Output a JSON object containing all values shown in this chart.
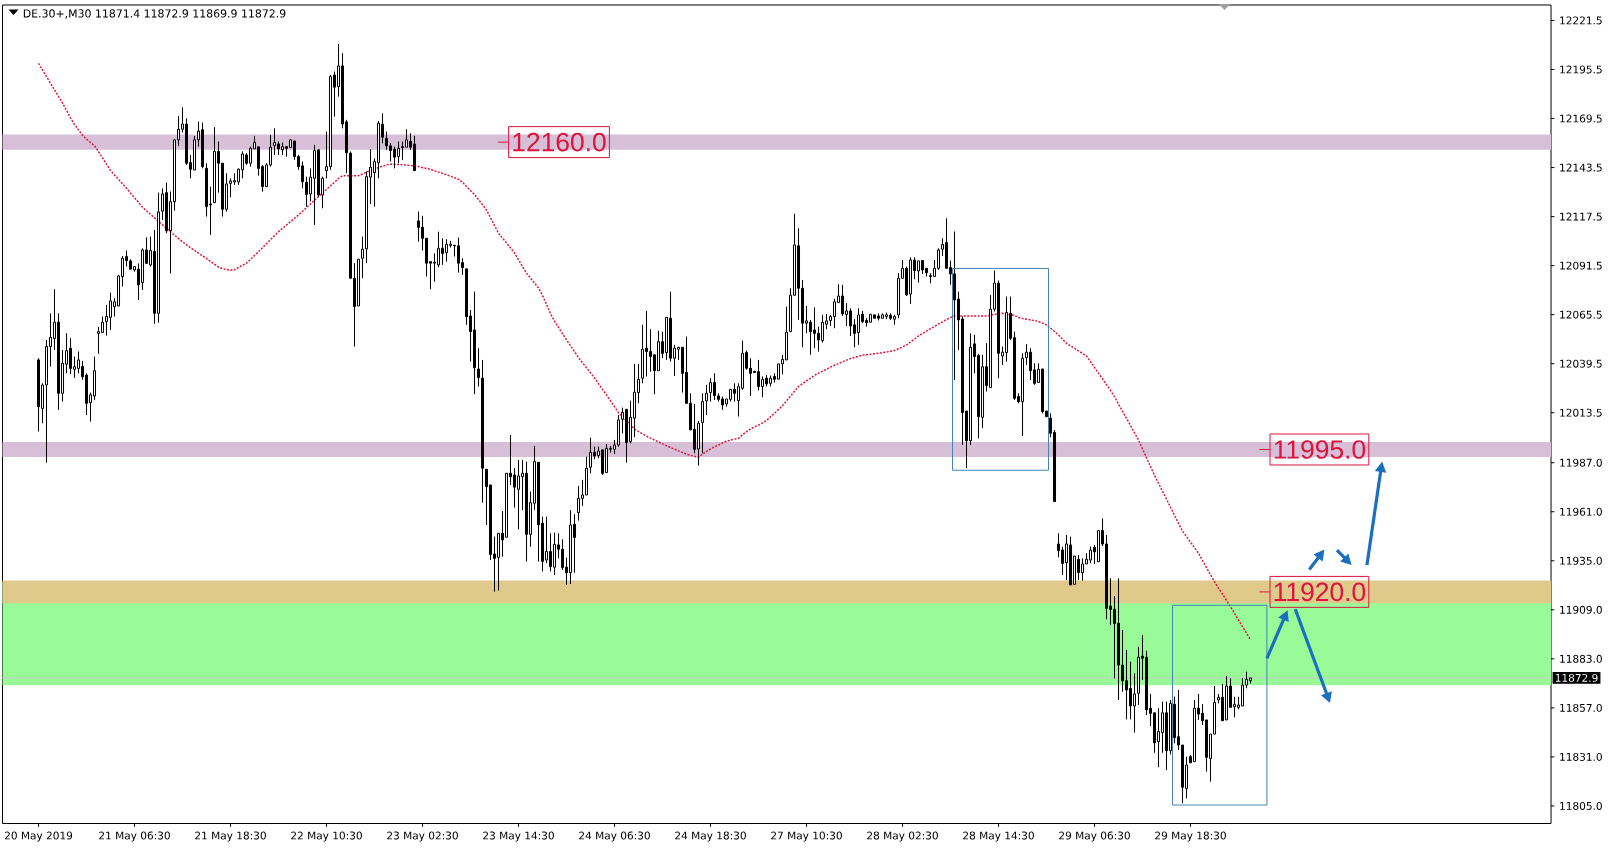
{
  "chart_data": {
    "type": "candlestick",
    "title": "DE.30+,M30 11871.4 11872.9 11869.9 11872.9",
    "color": "#000000",
    "categories": [
      "20 May 2019",
      null,
      null,
      null,
      null,
      null,
      null,
      null,
      null,
      null,
      null,
      null,
      null,
      null,
      null,
      null,
      null,
      null,
      null,
      null,
      null,
      null,
      null,
      null,
      "21 May 06:30",
      null,
      null,
      null,
      null,
      null,
      null,
      null,
      null,
      null,
      null,
      null,
      null,
      null,
      null,
      null,
      null,
      null,
      null,
      null,
      null,
      null,
      null,
      null,
      "21 May 18:30",
      null,
      null,
      null,
      null,
      null,
      null,
      null,
      null,
      null,
      null,
      null,
      null,
      null,
      null,
      null,
      null,
      null,
      null,
      null,
      null,
      null,
      null,
      null,
      "22 May 10:30",
      null,
      null,
      null,
      null,
      null,
      null,
      null,
      null,
      null,
      null,
      null,
      null,
      null,
      null,
      null,
      null,
      null,
      null,
      null,
      null,
      null,
      null,
      null,
      "23 May 02:30",
      null,
      null,
      null,
      null,
      null,
      null,
      null,
      null,
      null,
      null,
      null,
      null,
      null,
      null,
      null,
      null,
      null,
      null,
      null,
      null,
      null,
      null,
      null,
      "23 May 14:30",
      null,
      null,
      null,
      null,
      null,
      null,
      null,
      null,
      null,
      null,
      null,
      null,
      null,
      null,
      null,
      null,
      null,
      null,
      null,
      null,
      null,
      null,
      null,
      "24 May 06:30",
      null,
      null,
      null,
      null,
      null,
      null,
      null,
      null,
      null,
      null,
      null,
      null,
      null,
      null,
      null,
      null,
      null,
      null,
      null,
      null,
      null,
      null,
      null,
      "24 May 18:30",
      null,
      null,
      null,
      null,
      null,
      null,
      null,
      null,
      null,
      null,
      null,
      null,
      null,
      null,
      null,
      null,
      null,
      null,
      null,
      null,
      null,
      null,
      null,
      "27 May 10:30",
      null,
      null,
      null,
      null,
      null,
      null,
      null,
      null,
      null,
      null,
      null,
      null,
      null,
      null,
      null,
      null,
      null,
      null,
      null,
      null,
      null,
      null,
      null,
      "28 May 02:30",
      null,
      null,
      null,
      null,
      null,
      null,
      null,
      null,
      null,
      null,
      null,
      null,
      null,
      null,
      null,
      null,
      null,
      null,
      null,
      null,
      null,
      null,
      null,
      "28 May 14:30",
      null,
      null,
      null,
      null,
      null,
      null,
      null,
      null,
      null,
      null,
      null,
      null,
      null,
      null,
      null,
      null,
      null,
      null,
      null,
      null,
      null,
      null,
      null,
      "29 May 06:30",
      null,
      null,
      null,
      null,
      null,
      null,
      null,
      null,
      null,
      null,
      null,
      null,
      null,
      null,
      null,
      null,
      null,
      null,
      null,
      null,
      null,
      null,
      null,
      "29 May 18:30",
      null,
      null,
      null,
      null,
      null,
      null,
      null,
      null,
      null,
      null,
      null,
      null,
      null,
      null,
      null
    ],
    "ohlc": [
      [
        12041.5,
        12042.4,
        12003.5,
        12016.7
      ],
      [
        12015.8,
        12029.1,
        12007.9,
        12028.2
      ],
      [
        12028.2,
        12052.1,
        11987.0,
        12048.6
      ],
      [
        12048.6,
        12066.2,
        12038.0,
        12053.5
      ],
      [
        12052.9,
        12079.0,
        12046.8,
        12061.5
      ],
      [
        12061.5,
        12066.2,
        12015.0,
        12023.8
      ],
      [
        12023.8,
        12046.8,
        12019.4,
        12039.7
      ],
      [
        12039.2,
        12055.6,
        12034.4,
        12046.4
      ],
      [
        12047.7,
        12053.0,
        12034.0,
        12037.0
      ],
      [
        12036.5,
        12043.3,
        12032.0,
        12037.9
      ],
      [
        12037.0,
        12046.0,
        12034.4,
        12041.5
      ],
      [
        12038.0,
        12041.0,
        12031.0,
        12032.6
      ],
      [
        12033.5,
        12034.4,
        12012.3,
        12018.5
      ],
      [
        12018.8,
        12024.2,
        12008.8,
        12023.0
      ],
      [
        12022.4,
        12043.3,
        12020.3,
        12035.8
      ],
      [
        12055.6,
        12059.0,
        12044.7,
        12056.5
      ],
      [
        12056.0,
        12064.5,
        12056.0,
        12061.5
      ],
      [
        12061.8,
        12070.7,
        12054.4,
        12064.5
      ],
      [
        12064.1,
        12077.2,
        12057.4,
        12072.8
      ],
      [
        12069.8,
        12074.2,
        12064.5,
        12072.3
      ],
      [
        12070.1,
        12086.6,
        12070.1,
        12086.0
      ],
      [
        12085.7,
        12096.6,
        12080.4,
        12095.4
      ],
      [
        12096.3,
        12099.5,
        12091.0,
        12094.2
      ],
      [
        12094.0,
        12094.9,
        12089.6,
        12089.6
      ],
      [
        12089.2,
        12091.0,
        12088.3,
        12091.0
      ],
      [
        12089.6,
        12092.7,
        12073.3,
        12081.3
      ],
      [
        12082.5,
        12100.7,
        12078.6,
        12099.8
      ],
      [
        12099.8,
        12106.5,
        12092.7,
        12092.7
      ],
      [
        12091.9,
        12106.9,
        12091.0,
        12099.5
      ],
      [
        12099.0,
        12110.4,
        12060.6,
        12066.2
      ],
      [
        12066.2,
        12130.2,
        12061.3,
        12120.0
      ],
      [
        12120.4,
        12132.5,
        12115.7,
        12129.5
      ],
      [
        12130.2,
        12135.5,
        12108.7,
        12110.0
      ],
      [
        12110.0,
        12130.8,
        12087.4,
        12125.4
      ],
      [
        12125.4,
        12158.2,
        12120.7,
        12158.2
      ],
      [
        12158.2,
        12170.9,
        12155.0,
        12163.8
      ],
      [
        12163.8,
        12175.5,
        12162.1,
        12166.6
      ],
      [
        12166.6,
        12169.6,
        12144.9,
        12145.8
      ],
      [
        12146.1,
        12150.2,
        12137.8,
        12142.6
      ],
      [
        12142.2,
        12160.3,
        12142.2,
        12158.2
      ],
      [
        12158.2,
        12167.9,
        12154.6,
        12162.9
      ],
      [
        12163.5,
        12167.4,
        12143.1,
        12144.0
      ],
      [
        12143.1,
        12145.8,
        12117.5,
        12122.8
      ],
      [
        12124.2,
        12133.4,
        12107.8,
        12123.7
      ],
      [
        12124.9,
        12164.9,
        12124.9,
        12152.0
      ],
      [
        12152.0,
        12157.3,
        12130.2,
        12145.8
      ],
      [
        12145.8,
        12145.8,
        12117.5,
        12121.4
      ],
      [
        12121.4,
        12140.5,
        12120.1,
        12134.8
      ],
      [
        12135.1,
        12137.8,
        12127.7,
        12136.4
      ],
      [
        12135.9,
        12140.5,
        12134.3,
        12136.6
      ],
      [
        12135.9,
        12143.1,
        12134.3,
        12142.6
      ],
      [
        12142.3,
        12152.0,
        12137.8,
        12150.7
      ],
      [
        12150.2,
        12151.1,
        12144.9,
        12145.8
      ],
      [
        12145.8,
        12154.6,
        12144.0,
        12153.7
      ],
      [
        12153.4,
        12160.3,
        12153.4,
        12156.9
      ],
      [
        12154.5,
        12154.5,
        12139.2,
        12143.1
      ],
      [
        12144.0,
        12144.9,
        12130.7,
        12133.4
      ],
      [
        12133.4,
        12145.8,
        12133.4,
        12144.9
      ],
      [
        12144.9,
        12160.8,
        12144.0,
        12154.3
      ],
      [
        12155.2,
        12164.3,
        12150.2,
        12156.8
      ],
      [
        12156.0,
        12157.3,
        12150.2,
        12153.4
      ],
      [
        12152.9,
        12156.8,
        12150.2,
        12154.6
      ],
      [
        12154.6,
        12154.6,
        12149.3,
        12153.7
      ],
      [
        12154.1,
        12158.2,
        12154.1,
        12158.2
      ],
      [
        12157.6,
        12157.6,
        12147.6,
        12149.3
      ],
      [
        12149.3,
        12150.2,
        12142.3,
        12144.0
      ],
      [
        12144.4,
        12146.7,
        12132.5,
        12136.0
      ],
      [
        12135.7,
        12138.7,
        12122.8,
        12129.3
      ],
      [
        12129.5,
        12143.1,
        12125.5,
        12138.4
      ],
      [
        12137.8,
        12155.5,
        12113.1,
        12152.5
      ],
      [
        12152.9,
        12152.9,
        12128.1,
        12129.0
      ],
      [
        12129.0,
        12138.7,
        12121.9,
        12137.8
      ],
      [
        12141.9,
        12162.6,
        12137.8,
        12144.0
      ],
      [
        12144.0,
        12192.6,
        12142.3,
        12191.7
      ],
      [
        12192.6,
        12194.4,
        12170.5,
        12186.1
      ],
      [
        12186.4,
        12209.1,
        12181.1,
        12197.4
      ],
      [
        12197.4,
        12204.1,
        12164.3,
        12166.6
      ],
      [
        12167.7,
        12168.8,
        12140.5,
        12151.4
      ],
      [
        12151.1,
        12152.0,
        12084.8,
        12084.8
      ],
      [
        12084.8,
        12092.8,
        12048.6,
        12069.8
      ],
      [
        12070.1,
        12094.9,
        12070.1,
        12094.9
      ],
      [
        12095.4,
        12106.9,
        12084.8,
        12100.2
      ],
      [
        12100.4,
        12141.4,
        12092.8,
        12138.7
      ],
      [
        12138.4,
        12153.2,
        12124.2,
        12143.7
      ],
      [
        12140.8,
        12148.4,
        12122.8,
        12146.7
      ],
      [
        12146.1,
        12168.2,
        12137.8,
        12167.0
      ],
      [
        12166.5,
        12172.3,
        12156.4,
        12159.6
      ],
      [
        12159.0,
        12162.6,
        12152.9,
        12155.0
      ],
      [
        12155.0,
        12156.4,
        12146.7,
        12152.5
      ],
      [
        12153.2,
        12154.6,
        12143.1,
        12149.0
      ],
      [
        12149.3,
        12157.3,
        12145.8,
        12153.7
      ],
      [
        12154.6,
        12157.3,
        12147.6,
        12154.1
      ],
      [
        12154.3,
        12163.8,
        12154.3,
        12158.2
      ],
      [
        12157.3,
        12161.7,
        12152.9,
        12154.3
      ],
      [
        12155.9,
        12160.3,
        12141.9,
        12141.9
      ],
      [
        12115.2,
        12120.2,
        12104.2,
        12111.8
      ],
      [
        12111.8,
        12117.9,
        12099.5,
        12106.0
      ],
      [
        12106.0,
        12106.0,
        12085.7,
        12092.8
      ],
      [
        12093.6,
        12093.6,
        12079.0,
        12092.8
      ],
      [
        12093.3,
        12098.0,
        12083.0,
        12092.8
      ],
      [
        12091.9,
        12109.5,
        12090.6,
        12100.7
      ],
      [
        12100.7,
        12106.0,
        12091.9,
        12098.0
      ],
      [
        12098.4,
        12105.5,
        12093.6,
        12102.8
      ],
      [
        12102.2,
        12104.6,
        12101.1,
        12102.9
      ],
      [
        12102.3,
        12102.3,
        12096.3,
        12102.0
      ],
      [
        12102.0,
        12106.4,
        12087.8,
        12092.8
      ],
      [
        12093.1,
        12095.4,
        12086.6,
        12090.5
      ],
      [
        12089.8,
        12089.8,
        12060.1,
        12064.5
      ],
      [
        12064.8,
        12068.0,
        12040.6,
        12056.5
      ],
      [
        12057.4,
        12077.7,
        12023.3,
        12037.4
      ],
      [
        12036.7,
        12047.7,
        12027.4,
        12032.1
      ],
      [
        12031.8,
        12041.5,
        11965.8,
        11984.1
      ],
      [
        11983.5,
        11983.5,
        11954.0,
        11974.3
      ],
      [
        11975.2,
        11975.2,
        11935.4,
        11938.4
      ],
      [
        11938.6,
        11947.8,
        11918.6,
        11936.3
      ],
      [
        11936.8,
        11949.6,
        11919.2,
        11949.6
      ],
      [
        11949.6,
        11961.4,
        11937.2,
        11946.1
      ],
      [
        11947.5,
        11981.4,
        11947.5,
        11981.4
      ],
      [
        11981.4,
        12001.7,
        11975.2,
        11979.6
      ],
      [
        11980.5,
        11984.1,
        11963.2,
        11974.0
      ],
      [
        11972.9,
        11988.5,
        11951.7,
        11980.0
      ],
      [
        11979.6,
        11988.5,
        11961.9,
        11981.4
      ],
      [
        11981.4,
        11987.6,
        11934.6,
        11949.0
      ],
      [
        11949.0,
        11971.7,
        11942.5,
        11965.8
      ],
      [
        11965.5,
        11995.9,
        11962.0,
        11987.6
      ],
      [
        11987.2,
        11987.2,
        11934.6,
        11954.0
      ],
      [
        11954.9,
        11958.4,
        11929.3,
        11934.6
      ],
      [
        11935.4,
        11958.4,
        11933.7,
        11939.9
      ],
      [
        11939.9,
        11949.6,
        11929.3,
        11931.9
      ],
      [
        11931.6,
        11949.9,
        11927.5,
        11943.7
      ],
      [
        11943.4,
        11949.6,
        11936.3,
        11941.1
      ],
      [
        11941.1,
        11946.4,
        11930.1,
        11931.4
      ],
      [
        11931.6,
        11936.7,
        11922.2,
        11928.7
      ],
      [
        11928.7,
        11961.9,
        11922.7,
        11954.0
      ],
      [
        11954.4,
        11959.7,
        11928.7,
        11947.3
      ],
      [
        11960.5,
        11974.7,
        11956.3,
        11968.1
      ],
      [
        11968.1,
        11977.9,
        11964.1,
        11969.9
      ],
      [
        11969.9,
        11990.2,
        11969.9,
        11984.1
      ],
      [
        11984.6,
        12000.3,
        11981.4,
        11992.5
      ],
      [
        11992.5,
        11995.5,
        11988.8,
        11990.6
      ],
      [
        11990.8,
        11995.5,
        11989.4,
        11993.2
      ],
      [
        11993.8,
        11993.8,
        11980.5,
        11981.4
      ],
      [
        11981.8,
        11996.9,
        11981.8,
        11994.6
      ],
      [
        11994.1,
        11995.9,
        11992.4,
        11994.6
      ],
      [
        11994.1,
        11999.1,
        11991.6,
        11996.4
      ],
      [
        11996.4,
        12012.3,
        11995.5,
        12009.7
      ],
      [
        12010.0,
        12016.2,
        12002.6,
        12013.7
      ],
      [
        12015.3,
        12015.3,
        11987.0,
        11997.7
      ],
      [
        11998.2,
        12019.9,
        11997.3,
        12011.1
      ],
      [
        12010.6,
        12039.4,
        12000.5,
        12024.4
      ],
      [
        12024.2,
        12039.4,
        12018.5,
        12031.2
      ],
      [
        12031.8,
        12060.1,
        12029.1,
        12047.2
      ],
      [
        12047.7,
        12067.5,
        12032.7,
        12045.9
      ],
      [
        12045.9,
        12057.8,
        12035.3,
        12043.3
      ],
      [
        12044.2,
        12044.2,
        12023.3,
        12035.8
      ],
      [
        12035.8,
        12056.9,
        12035.8,
        12051.2
      ],
      [
        12051.2,
        12056.5,
        12042.4,
        12045.0
      ],
      [
        12045.4,
        12064.1,
        12041.5,
        12064.1
      ],
      [
        12063.6,
        12077.7,
        12040.6,
        12042.4
      ],
      [
        12042.4,
        12049.5,
        12033.0,
        12047.7
      ],
      [
        12047.2,
        12048.2,
        12041.5,
        12048.2
      ],
      [
        12048.2,
        12048.2,
        12024.2,
        12034.4
      ],
      [
        12034.9,
        12053.9,
        12018.5,
        12018.5
      ],
      [
        12018.5,
        12023.8,
        12004.4,
        12004.4
      ],
      [
        12004.7,
        12018.2,
        11992.0,
        11994.1
      ],
      [
        11994.3,
        12009.2,
        11985.5,
        12007.9
      ],
      [
        12008.3,
        12023.8,
        11992.0,
        12019.4
      ],
      [
        12019.8,
        12028.3,
        12012.3,
        12023.8
      ],
      [
        12024.2,
        12031.8,
        12019.4,
        12029.5
      ],
      [
        12029.5,
        12034.4,
        12020.3,
        12022.6
      ],
      [
        12022.4,
        12023.8,
        12019.4,
        12020.6
      ],
      [
        12020.8,
        12022.1,
        12015.0,
        12017.6
      ],
      [
        12018.2,
        12020.8,
        12016.7,
        12020.8
      ],
      [
        12020.6,
        12025.9,
        12019.4,
        12025.9
      ],
      [
        12025.9,
        12029.1,
        12019.4,
        12023.8
      ],
      [
        12019.9,
        12029.1,
        12011.5,
        12027.3
      ],
      [
        12026.5,
        12051.8,
        12025.6,
        12045.0
      ],
      [
        12045.4,
        12046.5,
        12036.2,
        12037.1
      ],
      [
        12037.1,
        12042.4,
        12022.4,
        12034.4
      ],
      [
        12035.5,
        12035.5,
        12034.8,
        12034.8
      ],
      [
        12035.3,
        12041.5,
        12025.3,
        12027.4
      ],
      [
        12027.4,
        12032.7,
        12021.7,
        12031.2
      ],
      [
        12031.8,
        12033.5,
        12027.4,
        12028.8
      ],
      [
        12029.1,
        12033.2,
        12027.4,
        12031.8
      ],
      [
        12032.7,
        12034.4,
        12029.5,
        12031.2
      ],
      [
        12031.3,
        12039.4,
        12031.3,
        12039.4
      ],
      [
        12039.4,
        12044.2,
        12033.9,
        12041.8
      ],
      [
        12041.5,
        12069.8,
        12041.5,
        12056.2
      ],
      [
        12056.5,
        12079.5,
        12056.5,
        12075.8
      ],
      [
        12075.8,
        12119.0,
        12075.8,
        12102.5
      ],
      [
        12102.0,
        12111.3,
        12062.7,
        12079.5
      ],
      [
        12079.5,
        12083.9,
        12048.2,
        12061.0
      ],
      [
        12061.0,
        12070.1,
        12055.6,
        12062.2
      ],
      [
        12061.5,
        12062.7,
        12044.2,
        12056.5
      ],
      [
        12057.4,
        12069.4,
        12047.7,
        12055.6
      ],
      [
        12055.6,
        12059.2,
        12045.9,
        12052.1
      ],
      [
        12051.8,
        12065.4,
        12050.7,
        12061.5
      ],
      [
        12060.4,
        12065.9,
        12057.8,
        12062.2
      ],
      [
        12062.4,
        12065.4,
        12059.5,
        12064.5
      ],
      [
        12064.5,
        12073.9,
        12058.3,
        12072.3
      ],
      [
        12071.9,
        12081.6,
        12071.9,
        12075.4
      ],
      [
        12075.4,
        12081.3,
        12064.8,
        12065.9
      ],
      [
        12065.6,
        12071.6,
        12059.5,
        12067.5
      ],
      [
        12067.5,
        12068.9,
        12054.2,
        12059.5
      ],
      [
        12060.1,
        12063.1,
        12048.2,
        12055.6
      ],
      [
        12056.0,
        12068.9,
        12049.5,
        12065.4
      ],
      [
        12065.7,
        12067.5,
        12060.9,
        12061.8
      ],
      [
        12062.4,
        12063.6,
        12059.2,
        12061.3
      ],
      [
        12061.5,
        12065.7,
        12061.5,
        12065.7
      ],
      [
        12065.4,
        12065.4,
        12063.6,
        12063.6
      ],
      [
        12064.8,
        12066.2,
        12062.4,
        12063.6
      ],
      [
        12063.6,
        12066.2,
        12063.6,
        12065.4
      ],
      [
        12064.5,
        12066.6,
        12063.1,
        12065.4
      ],
      [
        12065.2,
        12066.2,
        12062.7,
        12063.6
      ],
      [
        12063.1,
        12065.4,
        12060.1,
        12064.5
      ],
      [
        12065.4,
        12087.5,
        12063.6,
        12084.8
      ],
      [
        12084.8,
        12094.5,
        12084.8,
        12090.1
      ],
      [
        12090.1,
        12091.0,
        12075.4,
        12076.0
      ],
      [
        12076.4,
        12095.9,
        12071.2,
        12094.5
      ],
      [
        12094.5,
        12095.9,
        12084.3,
        12088.9
      ],
      [
        12088.7,
        12094.0,
        12082.5,
        12094.0
      ],
      [
        12094.2,
        12094.2,
        12087.1,
        12089.2
      ],
      [
        12090.1,
        12090.1,
        12085.7,
        12087.8
      ],
      [
        12086.2,
        12087.5,
        12082.2,
        12085.7
      ],
      [
        12085.7,
        12094.5,
        12085.7,
        12090.1
      ],
      [
        12090.1,
        12100.7,
        12089.2,
        12099.8
      ],
      [
        12100.2,
        12106.0,
        12096.6,
        12102.8
      ],
      [
        12103.7,
        12116.6,
        12090.1,
        12090.1
      ],
      [
        12090.5,
        12094.2,
        12081.3,
        12087.1
      ],
      [
        12087.1,
        12109.6,
        12030.9,
        12073.3
      ],
      [
        12073.7,
        12077.7,
        12046.8,
        12062.7
      ],
      [
        12063.2,
        12064.5,
        11996.4,
        12013.6
      ],
      [
        12014.4,
        12014.4,
        11984.1,
        11998.7
      ],
      [
        11998.7,
        12055.6,
        11996.4,
        12048.2
      ],
      [
        12050.0,
        12054.8,
        12034.4,
        12043.3
      ],
      [
        12043.8,
        12044.7,
        11999.9,
        12011.4
      ],
      [
        12011.1,
        12044.2,
        12005.3,
        12037.9
      ],
      [
        12037.9,
        12050.4,
        12024.7,
        12027.9
      ],
      [
        12026.8,
        12076.0,
        12026.8,
        12068.4
      ],
      [
        12068.4,
        12088.9,
        12067.1,
        12082.2
      ],
      [
        12082.2,
        12083.6,
        12031.8,
        12045.0
      ],
      [
        12043.6,
        12048.6,
        12038.8,
        12045.6
      ],
      [
        12045.4,
        12075.1,
        12040.6,
        12066.6
      ],
      [
        12066.2,
        12075.1,
        12052.1,
        12053.0
      ],
      [
        12053.3,
        12056.5,
        12020.3,
        12021.2
      ],
      [
        12022.1,
        12023.8,
        12018.5,
        12019.4
      ],
      [
        12019.4,
        12045.0,
        12001.2,
        12042.4
      ],
      [
        12042.7,
        12049.9,
        12038.8,
        12045.6
      ],
      [
        12045.6,
        12047.7,
        12030.9,
        12035.8
      ],
      [
        12036.2,
        12039.7,
        12028.3,
        12029.1
      ],
      [
        12029.5,
        12039.7,
        12029.5,
        12036.5
      ],
      [
        12036.7,
        12036.7,
        12013.2,
        12014.1
      ],
      [
        12014.4,
        12014.4,
        12011.4,
        12011.4
      ],
      [
        12010.6,
        12013.2,
        12000.5,
        12002.6
      ],
      [
        12003.1,
        12004.4,
        11966.4,
        11966.4
      ],
      [
        11943.9,
        11949.6,
        11936.8,
        11940.4
      ],
      [
        11940.7,
        11942.5,
        11927.5,
        11933.6
      ],
      [
        11934.0,
        11948.7,
        11924.8,
        11943.9
      ],
      [
        11943.4,
        11947.8,
        11922.2,
        11922.2
      ],
      [
        11922.5,
        11937.5,
        11922.5,
        11937.5
      ],
      [
        11935.8,
        11938.1,
        11924.8,
        11928.7
      ],
      [
        11928.7,
        11936.3,
        11924.5,
        11933.3
      ],
      [
        11933.3,
        11939.0,
        11933.3,
        11935.8
      ],
      [
        11935.4,
        11942.5,
        11933.7,
        11940.7
      ],
      [
        11942.1,
        11943.4,
        11933.3,
        11939.8
      ],
      [
        11934.5,
        11951.0,
        11934.5,
        11951.0
      ],
      [
        11951.0,
        11957.5,
        11942.8,
        11943.9
      ],
      [
        11943.9,
        11948.7,
        11904.0,
        11909.8
      ],
      [
        11911.0,
        11925.7,
        11900.9,
        11909.2
      ],
      [
        11909.3,
        11916.3,
        11872.7,
        11901.8
      ],
      [
        11901.8,
        11925.7,
        11861.2,
        11879.7
      ],
      [
        11879.7,
        11898.3,
        11865.6,
        11871.4
      ],
      [
        11871.4,
        11887.7,
        11850.9,
        11866.5
      ],
      [
        11867.3,
        11881.5,
        11850.9,
        11858.0
      ],
      [
        11858.0,
        11875.3,
        11843.9,
        11864.4
      ],
      [
        11864.7,
        11889.4,
        11858.5,
        11883.8
      ],
      [
        11884.5,
        11895.6,
        11871.8,
        11883.3
      ],
      [
        11883.8,
        11887.3,
        11853.2,
        11855.9
      ],
      [
        11856.8,
        11864.4,
        11847.4,
        11854.1
      ],
      [
        11854.4,
        11854.4,
        11833.2,
        11838.5
      ],
      [
        11839.1,
        11856.8,
        11825.5,
        11844.4
      ],
      [
        11843.9,
        11860.3,
        11833.2,
        11854.4
      ],
      [
        11854.4,
        11860.3,
        11824.0,
        11834.3
      ],
      [
        11834.3,
        11861.2,
        11832.3,
        11859.4
      ],
      [
        11858.9,
        11863.0,
        11838.2,
        11841.2
      ],
      [
        11841.7,
        11866.5,
        11834.6,
        11837.3
      ],
      [
        11837.3,
        11837.3,
        11806.4,
        11814.9
      ],
      [
        11814.3,
        11831.1,
        11809.0,
        11826.7
      ],
      [
        11831.1,
        11832.0,
        11827.9,
        11827.9
      ],
      [
        11828.5,
        11861.2,
        11828.5,
        11856.8
      ],
      [
        11856.8,
        11864.4,
        11850.6,
        11853.7
      ],
      [
        11854.1,
        11859.0,
        11847.9,
        11850.2
      ],
      [
        11850.6,
        11850.6,
        11823.2,
        11830.8
      ],
      [
        11830.2,
        11843.1,
        11817.9,
        11843.1
      ],
      [
        11843.1,
        11868.6,
        11843.1,
        11859.9
      ],
      [
        11861.2,
        11864.4,
        11859.4,
        11862.6
      ],
      [
        11862.6,
        11869.7,
        11850.2,
        11850.2
      ],
      [
        11850.6,
        11873.9,
        11850.6,
        11868.6
      ],
      [
        11868.6,
        11872.7,
        11857.3,
        11857.3
      ],
      [
        11857.6,
        11862.9,
        11852.0,
        11858.9
      ],
      [
        11857.3,
        11862.9,
        11856.2,
        11858.5
      ],
      [
        11858.0,
        11872.7,
        11858.0,
        11869.1
      ],
      [
        11869.1,
        11876.2,
        11867.4,
        11872.1
      ],
      [
        11871.4,
        11872.9,
        11869.9,
        11872.9
      ]
    ],
    "series": [
      {
        "type": "line",
        "color": "#dc143c",
        "line_style": "dotted",
        "values": [
          12198.8,
          12195.2,
          12191.7,
          12188.2,
          12184.7,
          12181.3,
          12177.7,
          12173.8,
          12169.9,
          12166.3,
          12163.5,
          12160.6,
          12158.6,
          12156.8,
          12155,
          12151.9,
          12148.6,
          12145.2,
          12142,
          12139.6,
          12137.2,
          12134.9,
          12132.5,
          12130,
          12127.5,
          12125,
          12122.5,
          12120.5,
          12118.7,
          12116.8,
          null,
          12113.1,
          null,
          null,
          12107.6,
          12105.9,
          12104.2,
          12102.5,
          12101,
          12099.6,
          12098.1,
          12096.7,
          12095.2,
          12093.7,
          12092.2,
          12090.7,
          12089.9,
          12089.4,
          12089,
          12089.3,
          12090.6,
          12091.7,
          12092.8,
          12094.8,
          12096.9,
          12098.9,
          12101,
          12103.1,
          12105.3,
          12107.4,
          12109.5,
          12111.3,
          12113.1,
          12114.8,
          12116.6,
          12118.4,
          12120.3,
          12122.3,
          12124.2,
          12126.2,
          null,
          null,
          12131.9,
          12133.8,
          12135.7,
          12137.7,
          12139.2,
          12139.2,
          null,
          12139.2,
          12139.2,
          12140.1,
          12141.1,
          null,
          null,
          12143.5,
          12144.2,
          12144.9,
          12145.3,
          12145.2,
          12145.1,
          12145,
          12144.8,
          12144.6,
          12144.3,
          12144,
          12143.5,
          12143,
          12142.5,
          12141.8,
          12141.1,
          12140.4,
          12139.7,
          12138.9,
          12138.1,
          12137.3,
          12135.7,
          12133.5,
          12131.3,
          12129.2,
          12126.5,
          12123.8,
          12121,
          12116.9,
          12112.8,
          12108.7,
          12106.1,
          12103.5,
          12100.9,
          12098.1,
          12094.6,
          12091,
          12087.5,
          12084.9,
          12082.3,
          12079.6,
          12075.7,
          12070.9,
          12066,
          12062,
          12058.7,
          12055.4,
          12052.1,
          12049,
          12045.9,
          12042.7,
          12040,
          12037.3,
          12034.7,
          12031.9,
          12028.9,
          12025.9,
          12022.9,
          12019.8,
          12016.7,
          12013.5,
          null,
          null,
          null,
          12004.8,
          12003.5,
          12002.3,
          12001.1,
          12000,
          11999,
          11998,
          11997,
          11996,
          11995.1,
          11994.2,
          11993.3,
          11992.4,
          11991.5,
          11990.9,
          11990.4,
          11989.9,
          11991.5,
          11993,
          11994.3,
          11995.4,
          11996.4,
          11997.5,
          11998.4,
          11998.9,
          11999.5,
          12000,
          12001.8,
          12003.5,
          12004.9,
          12006,
          12007,
          12008.1,
          12009.4,
          12011.3,
          12013.2,
          12015.2,
          12017.2,
          12019.8,
          12022.3,
          12024.9,
          12027.4,
          12028.9,
          12030.4,
          12031.8,
          12033.3,
          12034.5,
          12035.6,
          12036.6,
          12037.7,
          12038.7,
          12039.6,
          12040.5,
          12041.4,
          12042.2,
          12042.8,
          12043.4,
          12044,
          12044.3,
          12044.5,
          12044.8,
          12045.1,
          12045.4,
          12045.7,
          12046.1,
          12046.5,
          12047.4,
          12048.4,
          12049.4,
          12051,
          12052.6,
          12054.2,
          12055.6,
          12056.8,
          12058.1,
          12059.3,
          12060.6,
          12061.7,
          12062.9,
          12064,
          12064.8,
          null,
          12064.8,
          12064.8,
          12064.8,
          12064.8,
          12064.8,
          12064.8,
          12064.8,
          null,
          12065.7,
          null,
          12066.2,
          null,
          null,
          12065.1,
          12064,
          12063.4,
          12063.1,
          12062.7,
          12062.4,
          12061.9,
          12061,
          12060.1,
          12058.4,
          12056.6,
          12054.7,
          12052.5,
          12050.3,
          12049,
          12047.6,
          12046.3,
          12044.9,
          12043.6,
          12040.6,
          12037.5,
          12034.5,
          12031.5,
          12028.4,
          12025.4,
          12021.9,
          12018.1,
          12014.3,
          12010.5,
          12006.7,
          12002.9,
          11999,
          11994.3,
          11989.6,
          11984.9,
          11980.3,
          11976.1,
          11971.9,
          11967.7,
          11963.4,
          11959.1,
          11954.8,
          11950.7,
          11947.8,
          11944.9,
          11941.9,
          11939,
          11935.2,
          11931.4,
          11927.6,
          11923.9,
          11920.5,
          11917.3,
          11914,
          11910.6,
          11907.1,
          11903.6,
          11900.1,
          11896.6,
          11893
        ]
      }
    ],
    "ylim": [
      11795.7,
      12229.7
    ],
    "yticks": [
      {
        "value": 12221.5,
        "label": "12221.5"
      },
      {
        "value": 12195.5,
        "label": "12195.5"
      },
      {
        "value": 12169.5,
        "label": "12169.5"
      },
      {
        "value": 12143.5,
        "label": "12143.5"
      },
      {
        "value": 12117.5,
        "label": "12117.5"
      },
      {
        "value": 12091.5,
        "label": "12091.5"
      },
      {
        "value": 12065.5,
        "label": "12065.5"
      },
      {
        "value": 12039.5,
        "label": "12039.5"
      },
      {
        "value": 12013.5,
        "label": "12013.5"
      },
      {
        "value": 11987,
        "label": "11987.0"
      },
      {
        "value": 11961,
        "label": "11961.0"
      },
      {
        "value": 11935,
        "label": "11935.0"
      },
      {
        "value": 11909,
        "label": "11909.0"
      },
      {
        "value": 11883,
        "label": "11883.0"
      },
      {
        "value": 11857,
        "label": "11857.0"
      },
      {
        "value": 11831,
        "label": "11831.0"
      },
      {
        "value": 11805,
        "label": "11805.0"
      }
    ],
    "bands": [
      {
        "axis": "y",
        "from": 12153,
        "to": 12161,
        "color": "#d8bfd8",
        "label": "12160.0"
      },
      {
        "axis": "y",
        "from": 11990,
        "to": 11998,
        "color": "#d8bfd8",
        "label": "11995.0"
      },
      {
        "axis": "y",
        "from": 11869,
        "to": 11924,
        "color": "#98fb98"
      },
      {
        "axis": "y",
        "from": 11912.5,
        "to": 11924.5,
        "color": "#dfca8c",
        "label": "11920.0"
      }
    ],
    "ref_lines": [
      {
        "axis": "y",
        "value": 11872.9,
        "label": "11872.9",
        "color": "#c8c8c8"
      }
    ]
  }
}
